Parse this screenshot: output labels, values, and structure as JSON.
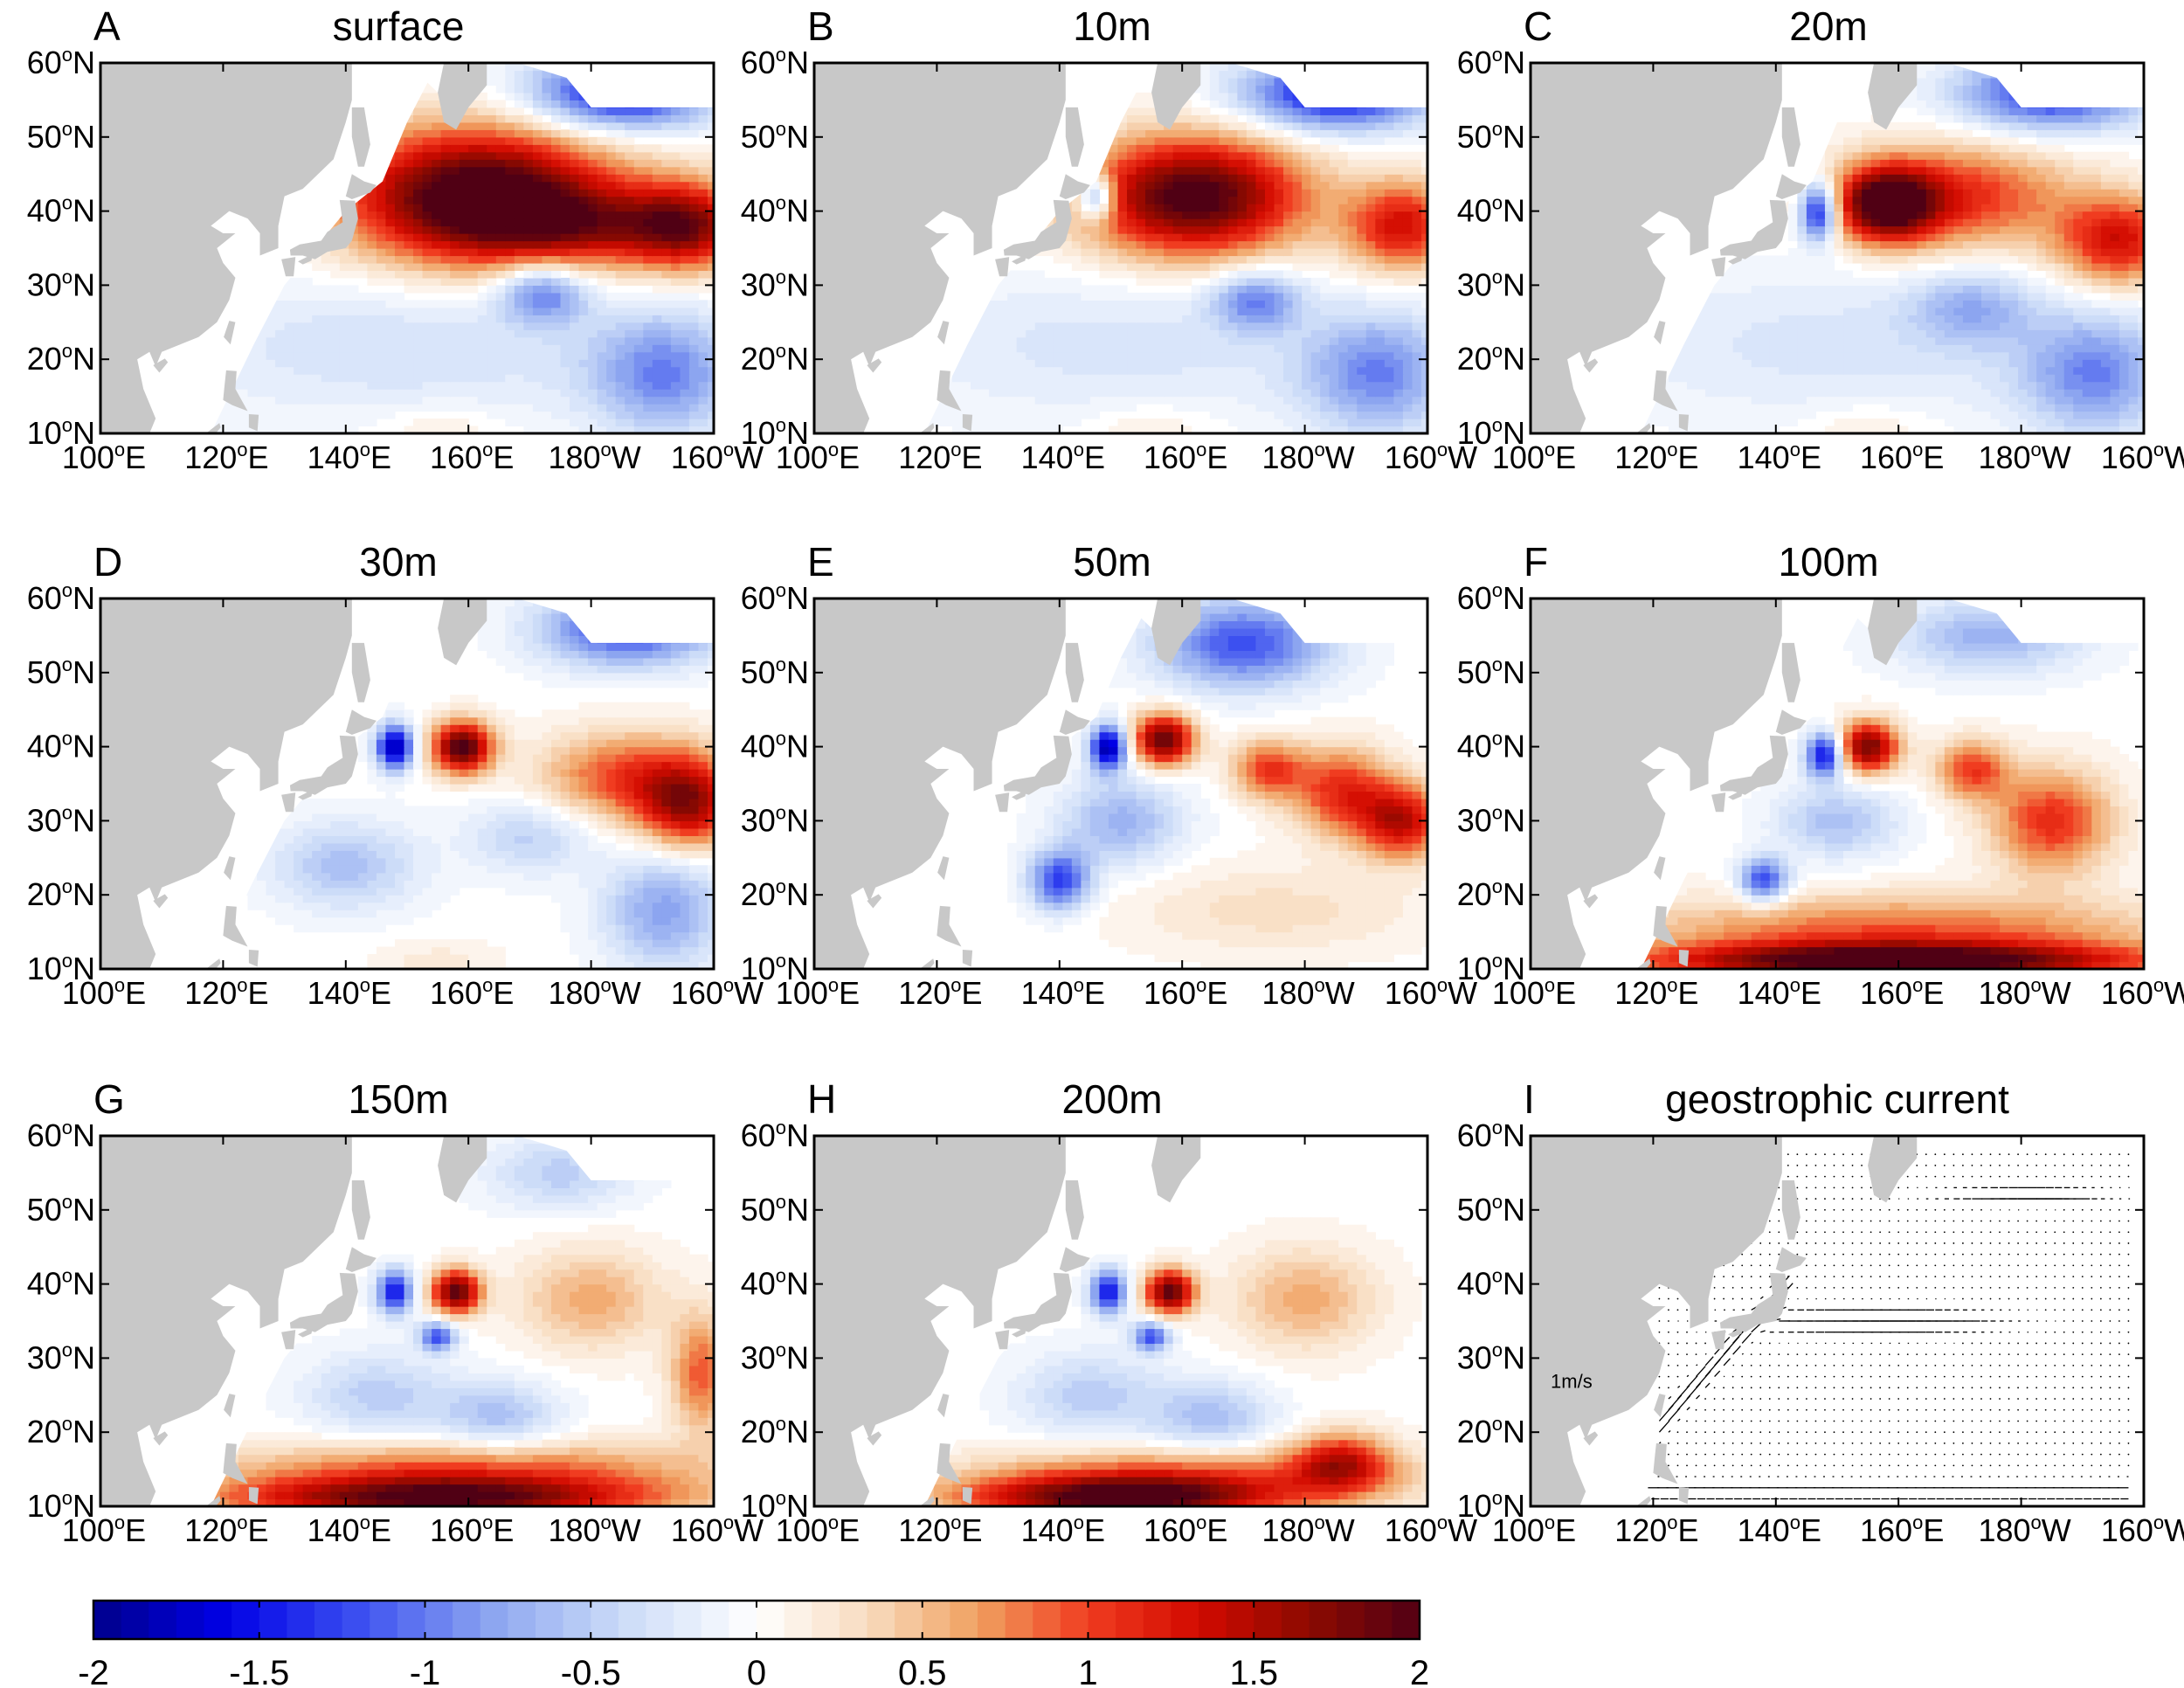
{
  "figure": {
    "colors": {
      "land": "#c8c8c8",
      "frame": "#000000",
      "ocean_neutral": "#ffffff"
    }
  },
  "axes": {
    "x_ticks": [
      {
        "num": "100",
        "sup": "o",
        "hem": "E"
      },
      {
        "num": "120",
        "sup": "o",
        "hem": "E"
      },
      {
        "num": "140",
        "sup": "o",
        "hem": "E"
      },
      {
        "num": "160",
        "sup": "o",
        "hem": "E"
      },
      {
        "num": "180",
        "sup": "o",
        "hem": "W"
      },
      {
        "num": "160",
        "sup": "o",
        "hem": "W"
      }
    ],
    "y_ticks": [
      {
        "num": "60",
        "sup": "o",
        "hem": "N"
      },
      {
        "num": "50",
        "sup": "o",
        "hem": "N"
      },
      {
        "num": "40",
        "sup": "o",
        "hem": "N"
      },
      {
        "num": "30",
        "sup": "o",
        "hem": "N"
      },
      {
        "num": "20",
        "sup": "o",
        "hem": "N"
      },
      {
        "num": "10",
        "sup": "o",
        "hem": "N"
      }
    ]
  },
  "chart_data": {
    "type": "heatmap",
    "description_units": "anomaly (color scale -2 to 2)",
    "xlim_lon_east": [
      100,
      200
    ],
    "ylim_lat": [
      10,
      60
    ],
    "colorbar": {
      "min": -2,
      "max": 2,
      "ticks": [
        "-2",
        "-1.5",
        "-1",
        "-0.5",
        "0",
        "0.5",
        "1",
        "1.5",
        "2"
      ],
      "stops": [
        "#00008a",
        "#0000e6",
        "#3c50f0",
        "#8ca5f0",
        "#ccdcf8",
        "#ffffff",
        "#f8dcc0",
        "#f0a060",
        "#f03c20",
        "#d20a00",
        "#8c0a00",
        "#500014"
      ]
    },
    "panels": [
      {
        "letter": "A",
        "title": "surface",
        "kind": "field",
        "blobs": [
          [
            162,
            42,
            22,
            9,
            2.3
          ],
          [
            196,
            38,
            10,
            6,
            1.4
          ],
          [
            180,
            38,
            18,
            5,
            0.9
          ],
          [
            185,
            56,
            15,
            5,
            -1.6
          ],
          [
            172,
            29,
            7,
            4,
            -1.0
          ],
          [
            192,
            18,
            12,
            8,
            -0.9
          ],
          [
            150,
            22,
            40,
            10,
            -0.35
          ],
          [
            155,
            11,
            10,
            3,
            0.2
          ]
        ]
      },
      {
        "letter": "B",
        "title": "10m",
        "kind": "field",
        "blobs": [
          [
            162,
            42,
            18,
            8,
            2.1
          ],
          [
            196,
            38,
            9,
            6,
            1.3
          ],
          [
            185,
            56,
            15,
            5,
            -1.6
          ],
          [
            146,
            42,
            3,
            3,
            -1.3
          ],
          [
            172,
            28,
            7,
            4,
            -0.9
          ],
          [
            192,
            18,
            12,
            8,
            -0.9
          ],
          [
            150,
            22,
            40,
            10,
            -0.3
          ],
          [
            155,
            11,
            10,
            3,
            0.2
          ]
        ]
      },
      {
        "letter": "C",
        "title": "20m",
        "kind": "field",
        "blobs": [
          [
            158,
            41,
            8,
            5,
            1.9
          ],
          [
            170,
            42,
            18,
            7,
            1.1
          ],
          [
            196,
            36,
            10,
            6,
            1.3
          ],
          [
            147,
            40,
            3,
            4,
            -1.7
          ],
          [
            185,
            56,
            15,
            5,
            -1.4
          ],
          [
            172,
            27,
            10,
            5,
            -0.6
          ],
          [
            192,
            18,
            12,
            8,
            -0.9
          ],
          [
            150,
            22,
            40,
            10,
            -0.3
          ],
          [
            155,
            11,
            10,
            3,
            0.2
          ]
        ]
      },
      {
        "letter": "D",
        "title": "30m",
        "kind": "field",
        "blobs": [
          [
            159,
            40,
            5,
            3.5,
            2.0
          ],
          [
            148,
            40,
            3,
            3,
            -1.9
          ],
          [
            186,
            36,
            14,
            6,
            1.0
          ],
          [
            196,
            32,
            8,
            6,
            1.4
          ],
          [
            186,
            56,
            14,
            5,
            -1.3
          ],
          [
            140,
            24,
            12,
            6,
            -0.6
          ],
          [
            170,
            28,
            10,
            5,
            -0.5
          ],
          [
            192,
            18,
            10,
            8,
            -0.8
          ],
          [
            155,
            11,
            10,
            3,
            0.2
          ]
        ]
      },
      {
        "letter": "E",
        "title": "50m",
        "kind": "field",
        "blobs": [
          [
            157,
            41,
            5,
            3.5,
            1.9
          ],
          [
            148,
            40,
            3,
            3,
            -1.9
          ],
          [
            186,
            34,
            8,
            6,
            1.1
          ],
          [
            196,
            30,
            7,
            5,
            1.4
          ],
          [
            174,
            37,
            6,
            4,
            1.0
          ],
          [
            140,
            22,
            5,
            4,
            -1.3
          ],
          [
            150,
            30,
            10,
            6,
            -0.7
          ],
          [
            170,
            54,
            14,
            6,
            -1.2
          ],
          [
            175,
            18,
            25,
            6,
            0.3
          ]
        ]
      },
      {
        "letter": "F",
        "title": "100m",
        "kind": "field",
        "blobs": [
          [
            155,
            40,
            5,
            3.5,
            1.8
          ],
          [
            148,
            39,
            3,
            3,
            -1.7
          ],
          [
            185,
            30,
            10,
            7,
            1.1
          ],
          [
            160,
            11,
            40,
            2.5,
            2.0
          ],
          [
            160,
            15,
            45,
            5,
            0.9
          ],
          [
            172,
            37,
            6,
            4,
            1.0
          ],
          [
            138,
            22,
            4,
            3,
            -1.3
          ],
          [
            150,
            30,
            10,
            5,
            -0.6
          ],
          [
            175,
            55,
            15,
            5,
            -0.7
          ]
        ]
      },
      {
        "letter": "G",
        "title": "150m",
        "kind": "field",
        "blobs": [
          [
            158,
            39,
            4,
            3,
            1.9
          ],
          [
            148,
            39,
            3,
            3,
            -1.5
          ],
          [
            155,
            33,
            3,
            2,
            -1.2
          ],
          [
            155,
            11,
            35,
            3,
            1.8
          ],
          [
            160,
            15,
            40,
            4,
            0.9
          ],
          [
            180,
            38,
            12,
            7,
            0.6
          ],
          [
            198,
            28,
            5,
            8,
            0.9
          ],
          [
            145,
            25,
            12,
            6,
            -0.5
          ],
          [
            165,
            22,
            10,
            5,
            -0.6
          ],
          [
            175,
            55,
            12,
            5,
            -0.5
          ]
        ]
      },
      {
        "letter": "H",
        "title": "200m",
        "kind": "field",
        "blobs": [
          [
            158,
            39,
            4,
            3,
            1.9
          ],
          [
            148,
            39,
            3,
            3,
            -1.5
          ],
          [
            155,
            33,
            3,
            2,
            -1.2
          ],
          [
            150,
            11,
            25,
            3,
            1.8
          ],
          [
            160,
            14,
            35,
            4,
            0.9
          ],
          [
            186,
            16,
            8,
            4,
            1.2
          ],
          [
            180,
            38,
            12,
            7,
            0.6
          ],
          [
            145,
            25,
            12,
            6,
            -0.5
          ],
          [
            165,
            22,
            10,
            5,
            -0.6
          ]
        ]
      },
      {
        "letter": "I",
        "title": "geostrophic current",
        "kind": "vectors",
        "reference_vector_label": "1m/s"
      }
    ]
  }
}
